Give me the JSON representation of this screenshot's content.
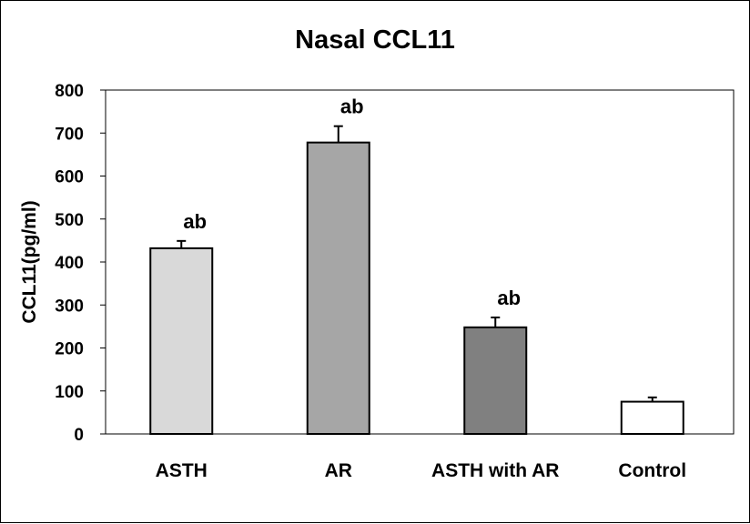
{
  "chart_data": {
    "type": "bar",
    "title": "Nasal CCL11",
    "ylabel": "CCL11(pg/ml)",
    "xlabel": "",
    "ylim": [
      0,
      800
    ],
    "yticks": [
      0,
      100,
      200,
      300,
      400,
      500,
      600,
      700,
      800
    ],
    "categories": [
      "ASTH",
      "AR",
      "ASTH with AR",
      "Control"
    ],
    "values": [
      432,
      678,
      248,
      75
    ],
    "errors": [
      17,
      38,
      23,
      10
    ],
    "annotations": [
      "ab",
      "ab",
      "ab",
      ""
    ],
    "colors": [
      "#d9d9d9",
      "#a6a6a6",
      "#808080",
      "#ffffff"
    ],
    "grid": false,
    "legend": "none"
  }
}
